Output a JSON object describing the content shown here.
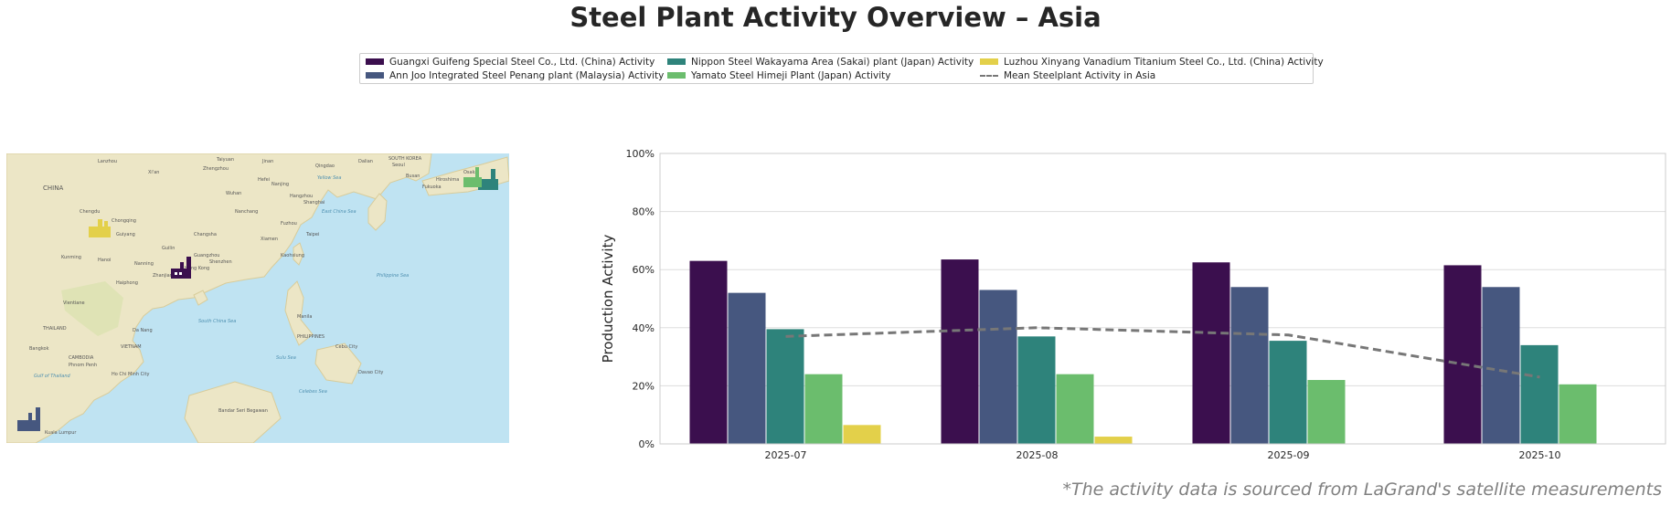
{
  "title": "Steel Plant Activity Overview – Asia",
  "footnote": "*The activity data is sourced from LaGrand's satellite measurements",
  "legend": {
    "items": [
      {
        "label": "Guangxi Guifeng Special Steel Co., Ltd. (China) Activity",
        "color": "#3b0f4e",
        "kind": "bar"
      },
      {
        "label": "Ann Joo Integrated Steel Penang plant (Malaysia) Activity",
        "color": "#46577f",
        "kind": "bar"
      },
      {
        "label": "Nippon Steel Wakayama Area (Sakai) plant (Japan) Activity",
        "color": "#2e837b",
        "kind": "bar"
      },
      {
        "label": "Yamato Steel Himeji Plant (Japan) Activity",
        "color": "#6bbd6d",
        "kind": "bar"
      },
      {
        "label": "Luzhou Xinyang Vanadium Titanium Steel Co., Ltd. (China) Activity",
        "color": "#e3d04a",
        "kind": "bar"
      },
      {
        "label": "Mean Steelplant Activity in Asia",
        "color": "#777777",
        "kind": "line"
      }
    ]
  },
  "map": {
    "labels": [
      "CHINA",
      "Hanoi",
      "Hong Kong",
      "Shanghai",
      "Taipei",
      "Manila",
      "Kuala Lumpur",
      "SOUTH KOREA",
      "Bangkok",
      "PHILIPPINES",
      "VIETNAM",
      "THAILAND",
      "CAMBODIA",
      "Ho Chi Minh City",
      "Cebu City",
      "Davao City",
      "Kaohsiung",
      "Chongqing",
      "Wuhan",
      "Nanjing",
      "Fuzhou",
      "Seoul",
      "Busan",
      "Qingdao",
      "Dalian",
      "Xi'an",
      "Chengdu",
      "Kunming",
      "Guangzhou",
      "Nanning",
      "Changsha",
      "Hangzhou",
      "Xiamen",
      "Guilin",
      "Haiphong",
      "Vientiane",
      "Da Nang",
      "Phnom Penh",
      "Bandar Seri Begawan",
      "Fukuoka",
      "Hiroshima",
      "Osaka",
      "Shenzhen",
      "Jinan",
      "Zhengzhou",
      "Lanzhou",
      "Taiyuan",
      "Hefei",
      "Nanchang",
      "Guiyang",
      "Zhanjiang",
      "Philippine Sea",
      "Yellow Sea",
      "East China Sea",
      "South China Sea",
      "Sulu Sea",
      "Celebes Sea",
      "Gulf of Thailand"
    ],
    "plant_markers": [
      {
        "plant": "Luzhou Xinyang Vanadium Titanium Steel Co., Ltd. (China)",
        "color": "#e3d04a"
      },
      {
        "plant": "Guangxi Guifeng Special Steel Co., Ltd. (China)",
        "color": "#3b0f4e"
      },
      {
        "plant": "Ann Joo Integrated Steel Penang plant (Malaysia)",
        "color": "#46577f"
      },
      {
        "plant": "Nippon Steel Wakayama Area (Sakai) plant (Japan)",
        "color": "#2e837b"
      },
      {
        "plant": "Yamato Steel Himeji Plant (Japan)",
        "color": "#6bbd6d"
      }
    ]
  },
  "chart_data": {
    "type": "bar",
    "title": "",
    "xlabel": "",
    "ylabel": "Production Activity",
    "categories": [
      "2025-07",
      "2025-08",
      "2025-09",
      "2025-10"
    ],
    "ylim": [
      0,
      100
    ],
    "yticks": [
      "0%",
      "20%",
      "40%",
      "60%",
      "80%",
      "100%"
    ],
    "grid": true,
    "legend_position": "top-center",
    "series": [
      {
        "name": "Guangxi Guifeng Special Steel Co., Ltd. (China) Activity",
        "color": "#3b0f4e",
        "values": [
          63,
          63.5,
          62.5,
          61.5
        ]
      },
      {
        "name": "Ann Joo Integrated Steel Penang plant (Malaysia) Activity",
        "color": "#46577f",
        "values": [
          52,
          53,
          54,
          54
        ]
      },
      {
        "name": "Nippon Steel Wakayama Area (Sakai) plant (Japan) Activity",
        "color": "#2e837b",
        "values": [
          39.5,
          37,
          35.5,
          34
        ]
      },
      {
        "name": "Yamato Steel Himeji Plant (Japan) Activity",
        "color": "#6bbd6d",
        "values": [
          24,
          24,
          22,
          20.5
        ]
      },
      {
        "name": "Luzhou Xinyang Vanadium Titanium Steel Co., Ltd. (China) Activity",
        "color": "#e3d04a",
        "values": [
          6.5,
          2.5,
          null,
          null
        ]
      }
    ],
    "line": {
      "name": "Mean Steelplant Activity in Asia",
      "color": "#777777",
      "style": "dashed",
      "values": [
        37,
        40,
        37.5,
        23
      ]
    }
  }
}
